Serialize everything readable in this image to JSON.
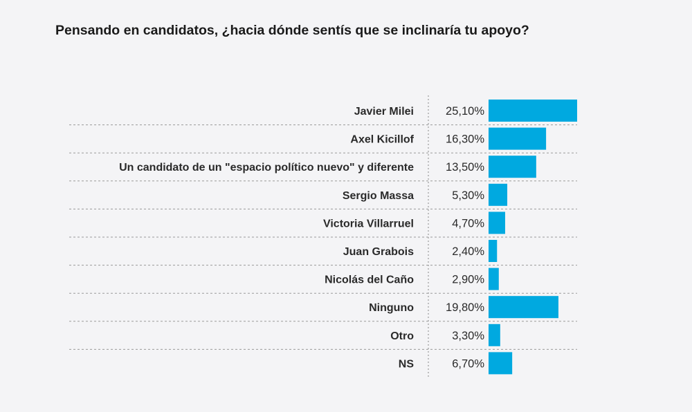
{
  "chart_data": {
    "type": "bar",
    "orientation": "horizontal",
    "title": "Pensando en candidatos, ¿hacia dónde sentís que se inclinaría tu apoyo?",
    "categories": [
      "Javier Milei",
      "Axel Kicillof",
      "Un candidato de un \"espacio político nuevo\" y diferente",
      "Sergio Massa",
      "Victoria Villarruel",
      "Juan Grabois",
      "Nicolás del Caño",
      "Ninguno",
      "Otro",
      "NS"
    ],
    "values": [
      25.1,
      16.3,
      13.5,
      5.3,
      4.7,
      2.4,
      2.9,
      19.8,
      3.3,
      6.7
    ],
    "value_labels": [
      "25,10%",
      "16,30%",
      "13,50%",
      "5,30%",
      "4,70%",
      "2,40%",
      "2,90%",
      "19,80%",
      "3,30%",
      "6,70%"
    ],
    "xlim": [
      0,
      25.1
    ],
    "grid": false,
    "bar_color": "#00a9e0",
    "background": "#f4f4f6"
  }
}
